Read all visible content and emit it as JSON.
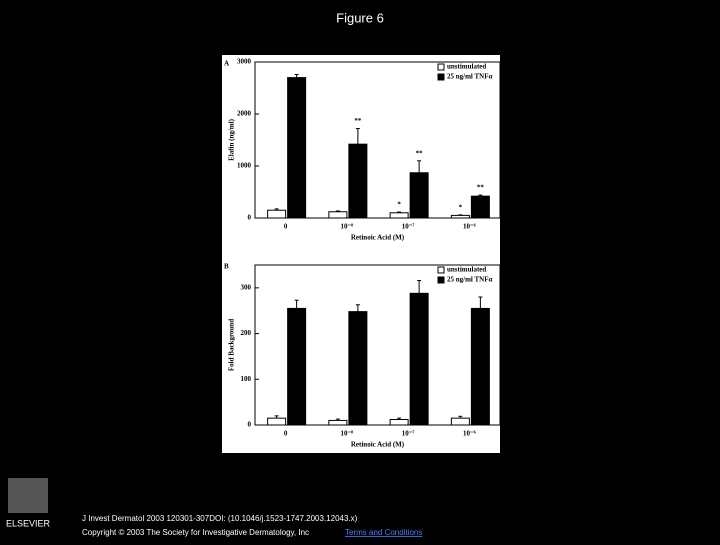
{
  "page": {
    "title": "Figure 6",
    "citation": "J Invest Dermatol 2003 120301-307DOI: (10.1046/j.1523-1747.2003.12043.x)",
    "copyright": "Copyright © 2003 The Society for Investigative Dermatology, Inc",
    "link": "Terms and Conditions",
    "logo": "ELSEVIER"
  },
  "chart_data": [
    {
      "type": "bar",
      "panel": "A",
      "y_label": "Elafin (ng/ml)",
      "x_label": "Retinoic Acid (M)",
      "categories": [
        "0",
        "10⁻⁸",
        "10⁻⁷",
        "10⁻⁶"
      ],
      "series": [
        {
          "name": "unstimulated",
          "color": "#ffffff",
          "values": [
            150,
            120,
            100,
            50
          ],
          "errors": [
            25,
            15,
            15,
            10
          ],
          "markers": [
            null,
            null,
            "*",
            "*"
          ]
        },
        {
          "name": "25 ng/ml TNFα",
          "color": "#000000",
          "values": [
            2700,
            1420,
            870,
            420
          ],
          "errors": [
            60,
            300,
            230,
            20
          ],
          "markers": [
            null,
            "**",
            "**",
            "**"
          ]
        }
      ],
      "ylim": [
        0,
        3000
      ],
      "yticks": [
        0,
        1000,
        2000,
        3000
      ],
      "legend": "top-right"
    },
    {
      "type": "bar",
      "panel": "B",
      "y_label": "Fold Background",
      "x_label": "Retinoic Acid (M)",
      "categories": [
        "0",
        "10⁻⁸",
        "10⁻⁷",
        "10⁻⁶"
      ],
      "series": [
        {
          "name": "unstimulated",
          "color": "#ffffff",
          "values": [
            15,
            10,
            12,
            15
          ],
          "errors": [
            5,
            3,
            3,
            4
          ]
        },
        {
          "name": "25 ng/ml TNFα",
          "color": "#000000",
          "values": [
            255,
            248,
            288,
            255
          ],
          "errors": [
            18,
            15,
            28,
            25
          ]
        }
      ],
      "ylim": [
        0,
        350
      ],
      "yticks": [
        0,
        100,
        200,
        300
      ],
      "legend": "top-right"
    }
  ]
}
